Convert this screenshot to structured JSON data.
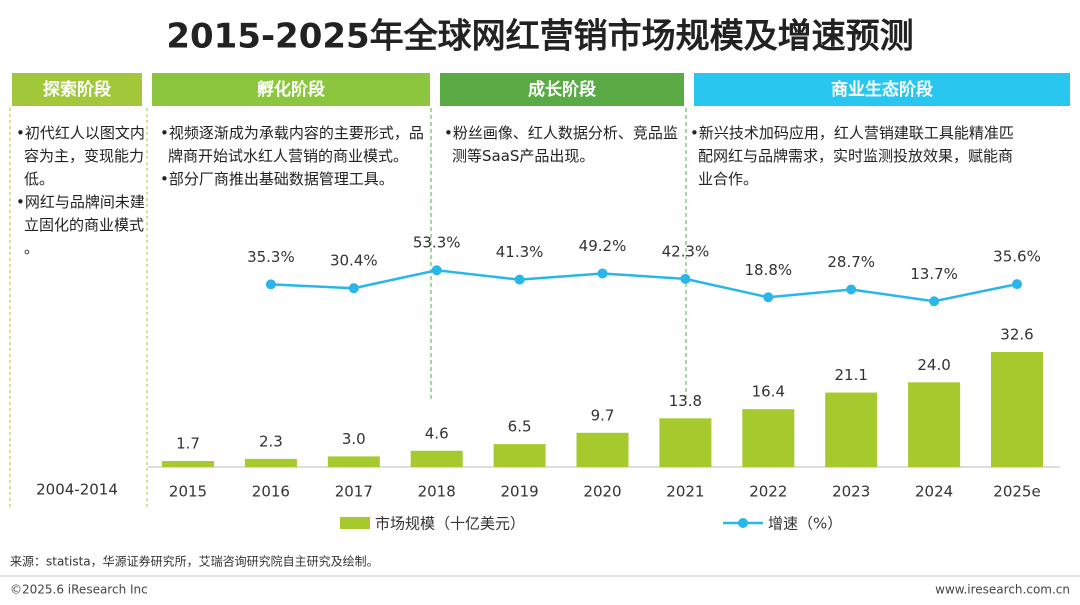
{
  "title": "2015-2025年全球网红营销市场规模及增速预测",
  "stages": [
    {
      "name": "探索阶段",
      "color": "#a2c73b",
      "bullets": [
        "初代红人以图文内容为主，变现能力低。",
        "网红与品牌间未建立固化的商业模式。"
      ]
    },
    {
      "name": "孵化阶段",
      "color": "#8cc63f",
      "bullets": [
        "视频逐渐成为承载内容的主要形式，品牌商开始试水红人营销的商业模式。",
        "部分厂商推出基础数据管理工具。"
      ]
    },
    {
      "name": "成长阶段",
      "color": "#5aaa46",
      "bullets": [
        "粉丝画像、红人数据分析、竞品监测等SaaS产品出现。"
      ]
    },
    {
      "name": "商业生态阶段",
      "color": "#29c6f0",
      "bullets": [
        "新兴技术加码应用，红人营销建联工具能精准匹配网红与品牌需求，实时监测投放效果，赋能商业合作。"
      ]
    }
  ],
  "period_label": "2004-2014",
  "chart_data": {
    "type": "bar",
    "categories": [
      "2015",
      "2016",
      "2017",
      "2018",
      "2019",
      "2020",
      "2021",
      "2022",
      "2023",
      "2024",
      "2025e"
    ],
    "series": [
      {
        "name": "市场规模（十亿美元）",
        "color": "#a6c92e",
        "values": [
          1.7,
          2.3,
          3.0,
          4.6,
          6.5,
          9.7,
          13.8,
          16.4,
          21.1,
          24.0,
          32.6
        ],
        "value_labels": [
          "1.7",
          "2.3",
          "3.0",
          "4.6",
          "6.5",
          "9.7",
          "13.8",
          "16.4",
          "21.1",
          "24.0",
          "32.6"
        ]
      },
      {
        "name": "增速（%）",
        "type": "line",
        "axis": "y2",
        "color": "#29b6e8",
        "values": [
          null,
          35.3,
          30.4,
          53.3,
          41.3,
          49.2,
          42.3,
          18.8,
          28.7,
          13.7,
          35.6
        ],
        "value_labels": [
          null,
          "35.3%",
          "30.4%",
          "53.3%",
          "41.3%",
          "49.2%",
          "42.3%",
          "18.8%",
          "28.7%",
          "13.7%",
          "35.6%"
        ]
      }
    ],
    "ylim": [
      0,
      35
    ],
    "y2lim": [
      0,
      60
    ]
  },
  "source": "来源：statista，华源证券研究所，艾瑞咨询研究院自主研究及绘制。",
  "copyright": "©2025.6 iResearch Inc",
  "website": "www.iresearch.com.cn"
}
